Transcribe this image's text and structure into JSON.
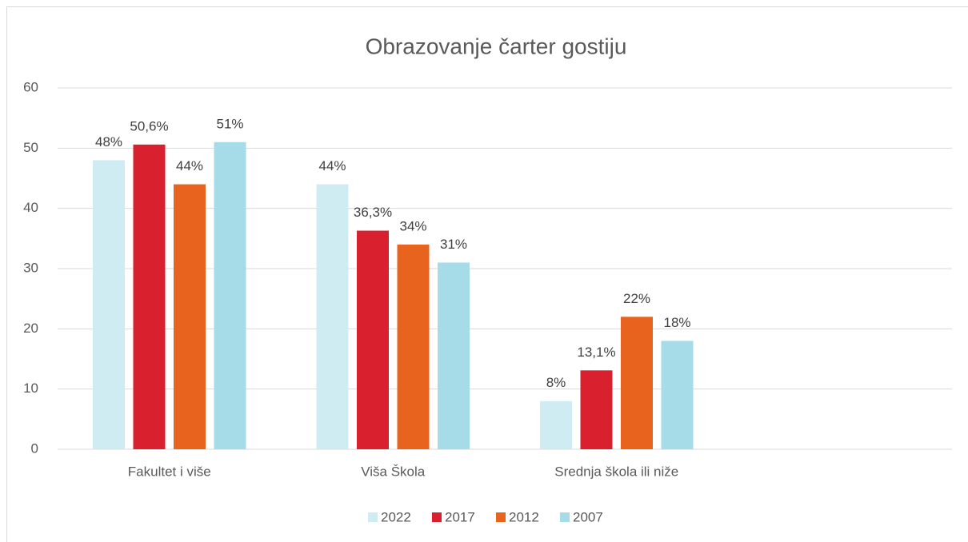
{
  "chart_data": {
    "type": "bar",
    "title": "Obrazovanje čarter gostiju",
    "categories": [
      "Fakultet i više",
      "Viša Škola",
      "Srednja škola ili niže",
      null
    ],
    "series": [
      {
        "name": "2022",
        "color": "#d0ecf3",
        "values": [
          48,
          44,
          8,
          null
        ],
        "value_labels": [
          "48%",
          "44%",
          "8%",
          null
        ]
      },
      {
        "name": "2017",
        "color": "#d9202e",
        "values": [
          50.6,
          36.3,
          13.1,
          null
        ],
        "value_labels": [
          "50,6%",
          "36,3%",
          "13,1%",
          null
        ]
      },
      {
        "name": "2012",
        "color": "#e8641e",
        "values": [
          44,
          34,
          22,
          null
        ],
        "value_labels": [
          "44%",
          "34%",
          "22%",
          null
        ]
      },
      {
        "name": "2007",
        "color": "#a6dbe8",
        "values": [
          51,
          31,
          18,
          null
        ],
        "value_labels": [
          "51%",
          "31%",
          "18%",
          null
        ]
      }
    ],
    "ylim": [
      0,
      60
    ],
    "yticks": [
      0,
      10,
      20,
      30,
      40,
      50,
      60
    ],
    "grid": true,
    "legend": "bottom"
  }
}
